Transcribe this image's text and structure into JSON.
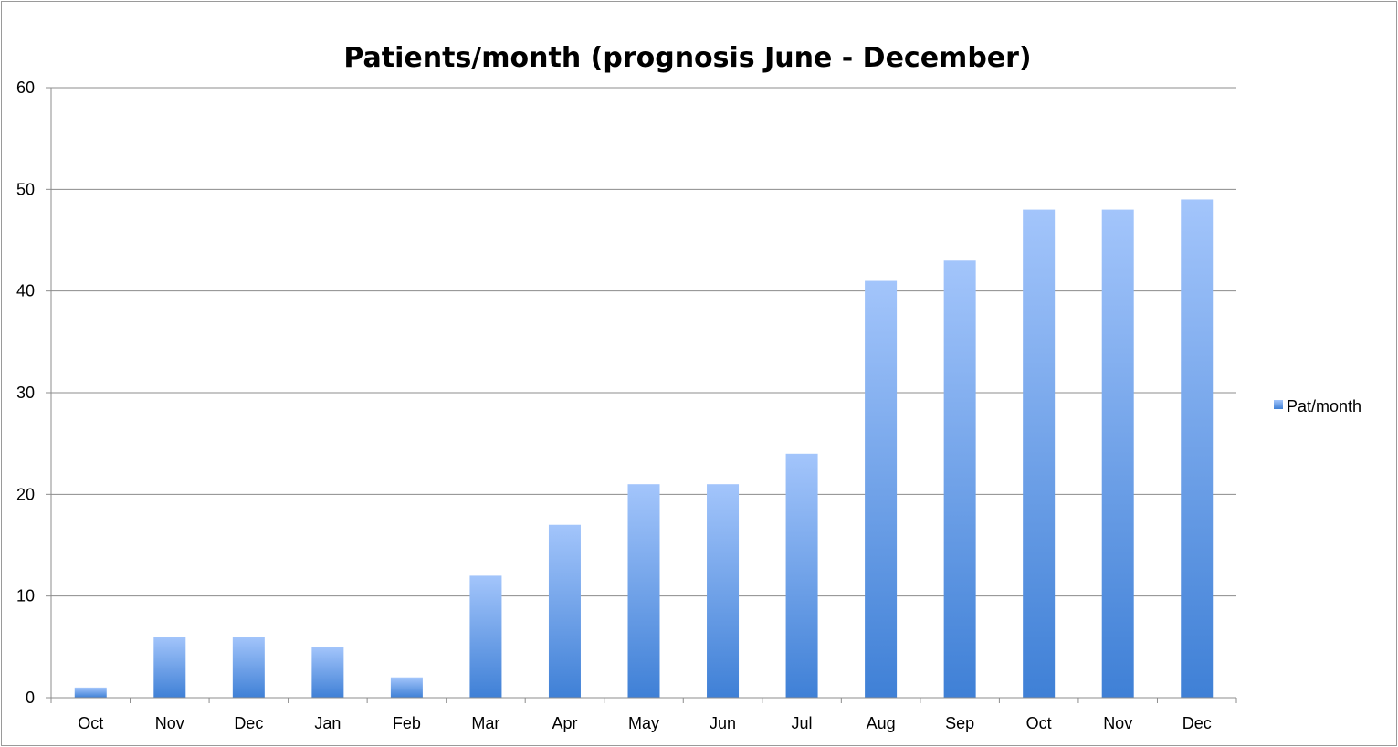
{
  "chart_data": {
    "type": "bar",
    "title": "Patients/month (prognosis June - December)",
    "xlabel": "",
    "ylabel": "",
    "categories": [
      "Oct",
      "Nov",
      "Dec",
      "Jan",
      "Feb",
      "Mar",
      "Apr",
      "May",
      "Jun",
      "Jul",
      "Aug",
      "Sep",
      "Oct",
      "Nov",
      "Dec"
    ],
    "series": [
      {
        "name": "Pat/month",
        "values": [
          1,
          6,
          6,
          5,
          2,
          12,
          17,
          21,
          21,
          24,
          41,
          43,
          48,
          48,
          49
        ]
      }
    ],
    "ylim": [
      0,
      60
    ],
    "yticks": [
      0,
      10,
      20,
      30,
      40,
      50,
      60
    ],
    "grid": true,
    "legend_position": "right",
    "colors": {
      "bar_top": "#a3c5fb",
      "bar_bottom": "#3f80d6",
      "grid": "#8c8c8c",
      "axis": "#8c8c8c"
    }
  }
}
